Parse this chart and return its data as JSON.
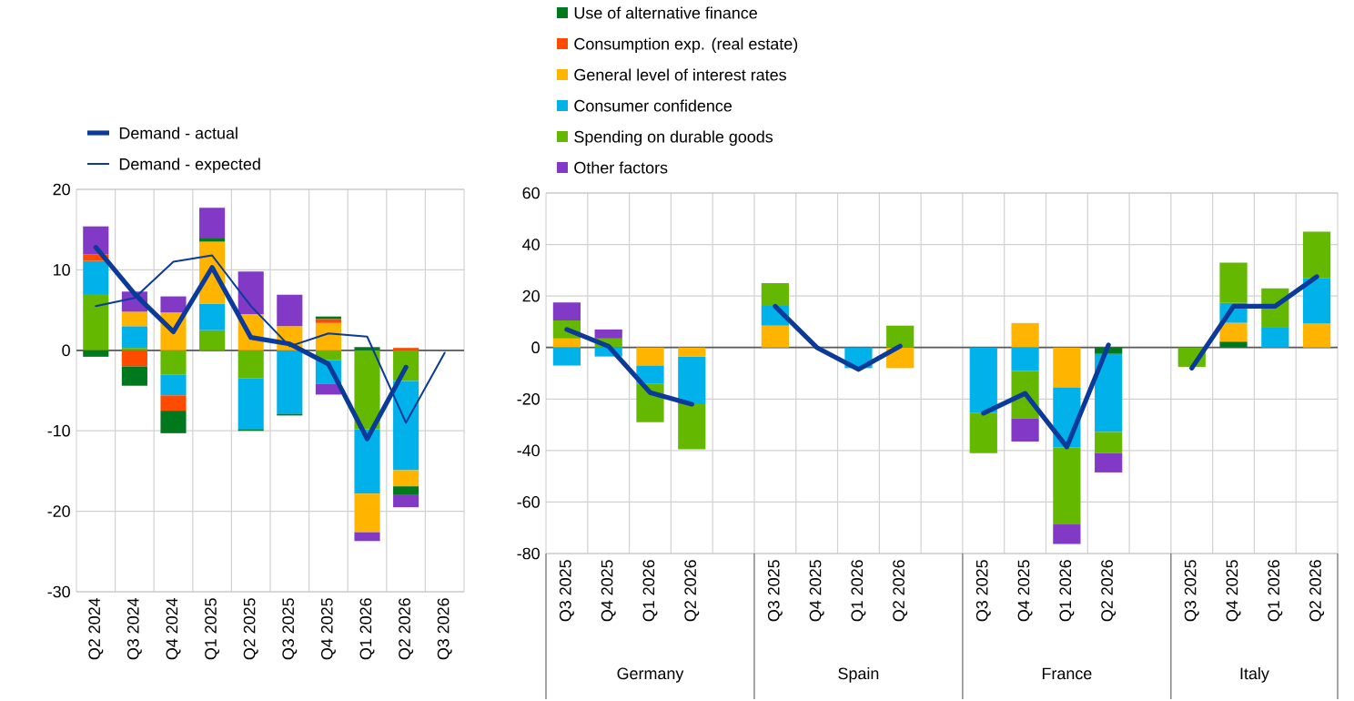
{
  "chart_data": [
    {
      "type": "bar",
      "stacked": true,
      "grid": true,
      "legend": "top left",
      "ylim": [
        -30,
        20
      ],
      "yticks": [
        -30,
        -20,
        -10,
        0,
        10,
        20
      ],
      "categories": [
        "Q2 2024",
        "Q3 2024",
        "Q4 2024",
        "Q1 2025",
        "Q2 2025",
        "Q3 2025",
        "Q4 2025",
        "Q1 2026",
        "Q2 2026",
        "Q3 2026"
      ],
      "series": [
        {
          "color": "#65b800",
          "values": [
            7,
            0.3,
            -3,
            2.5,
            -3.5,
            null,
            -1.2,
            -9.8,
            -3.8,
            null
          ]
        },
        {
          "color": "#00b1ea",
          "values": [
            4.1,
            2.7,
            -2.6,
            3.3,
            -6.3,
            -7.9,
            -3,
            -8,
            -11.1,
            null
          ]
        },
        {
          "color": "#ffb400",
          "values": [
            null,
            1.8,
            4.7,
            7.7,
            4.5,
            3,
            3.4,
            -4.8,
            -2,
            null
          ]
        },
        {
          "color": "#ff4b00",
          "values": [
            0.8,
            -2,
            -1.9,
            null,
            null,
            null,
            0.5,
            null,
            0.3,
            null
          ]
        },
        {
          "color": "#00781e",
          "values": [
            -0.8,
            -2.4,
            -2.8,
            0.4,
            -0.2,
            -0.2,
            0.3,
            0.4,
            -1,
            null
          ]
        },
        {
          "color": "#8139c6",
          "values": [
            3.5,
            2.5,
            2,
            3.8,
            5.3,
            3.9,
            -1.3,
            -1.1,
            -1.6,
            null
          ]
        },
        {
          "type": "line",
          "name": "Demand - actual",
          "color": "#0a3a9a",
          "values": [
            12.8,
            7,
            2.3,
            10.3,
            1.6,
            0.8,
            -1.7,
            -11,
            -2.1,
            null
          ]
        },
        {
          "type": "line",
          "name": "Demand - expected",
          "color": "#0a3a9a",
          "values": [
            5.5,
            6.5,
            11,
            11.8,
            5.5,
            0.5,
            2.1,
            1.7,
            -9,
            -0.3
          ]
        }
      ]
    },
    {
      "type": "bar",
      "stacked": true,
      "grid": true,
      "legend": "top left",
      "ylim": [
        -80,
        60
      ],
      "yticks": [
        -80,
        -60,
        -40,
        -20,
        0,
        20,
        40,
        60
      ],
      "categories": [
        "Q3 2025",
        "Q4 2025",
        "Q1 2026",
        "Q2 2026",
        null,
        "Q3 2025",
        "Q4 2025",
        "Q1 2026",
        "Q2 2026",
        null,
        "Q3 2025",
        "Q4 2025",
        "Q1 2026",
        "Q2 2026",
        null,
        "Q3 2025",
        "Q4 2025",
        "Q1 2026",
        "Q2 2026"
      ],
      "annotations": [
        "Germany",
        "Spain",
        "France",
        "Italy"
      ],
      "series": [
        {
          "name": "Use of alternative finance",
          "color": "#00781e",
          "values": [
            null,
            null,
            null,
            null,
            null,
            null,
            null,
            null,
            null,
            null,
            null,
            null,
            null,
            -2.5,
            null,
            null,
            2.3,
            null,
            null
          ]
        },
        {
          "name": "Consumption exp. (real estate)",
          "color": "#ff4b00",
          "values": [
            null,
            null,
            null,
            null,
            null,
            null,
            null,
            null,
            null,
            null,
            null,
            null,
            null,
            null,
            null,
            null,
            null,
            null,
            null
          ]
        },
        {
          "name": "General level of interest rates",
          "color": "#ffb400",
          "values": [
            3.5,
            null,
            -7,
            -3.5,
            null,
            8.5,
            null,
            null,
            -8,
            null,
            null,
            9.5,
            -15.5,
            null,
            null,
            null,
            7.3,
            null,
            9.4
          ]
        },
        {
          "name": "Consumer confidence",
          "color": "#00b1ea",
          "values": [
            -7,
            -3.5,
            -7,
            -18.5,
            null,
            8,
            null,
            -8,
            null,
            null,
            -25.5,
            -9,
            -23.2,
            -30.3,
            null,
            null,
            7.7,
            8,
            17.6
          ]
        },
        {
          "name": "Spending on durable goods",
          "color": "#65b800",
          "values": [
            7,
            3.5,
            -15,
            -17.5,
            null,
            8.5,
            null,
            null,
            8.5,
            null,
            -15.5,
            -18.5,
            -30,
            -8.2,
            null,
            -7.5,
            15.7,
            15,
            18
          ]
        },
        {
          "name": "Other factors",
          "color": "#8139c6",
          "values": [
            7,
            3.5,
            null,
            null,
            null,
            null,
            null,
            null,
            null,
            null,
            null,
            -9,
            -7.6,
            -7.5,
            null,
            null,
            null,
            null,
            null
          ]
        },
        {
          "type": "line",
          "color": "#0a3a9a",
          "values": [
            7,
            0.5,
            -17.5,
            -22,
            null,
            16,
            0,
            -8.5,
            0.5,
            null,
            -25.5,
            -17.8,
            -38.6,
            1,
            null,
            -8,
            16,
            16,
            27.5
          ]
        }
      ]
    }
  ]
}
